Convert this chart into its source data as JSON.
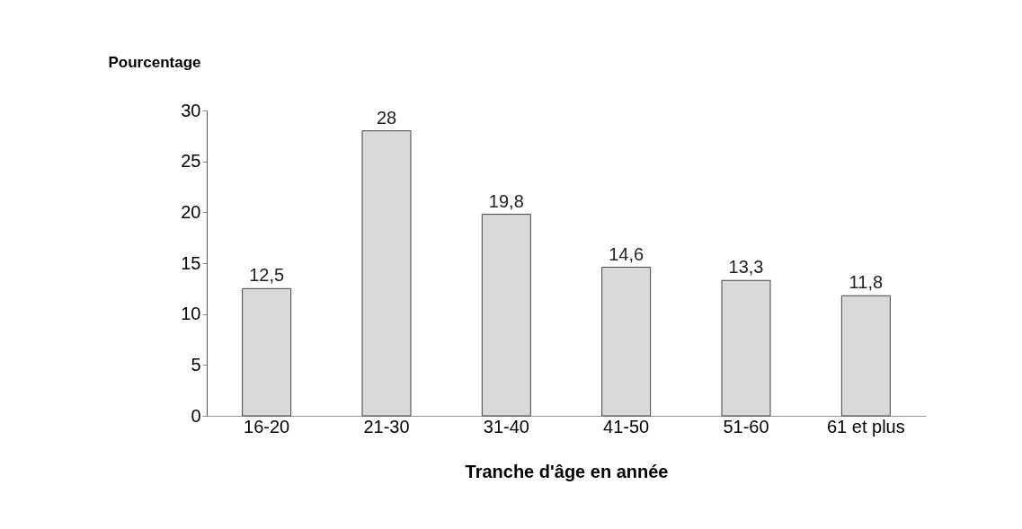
{
  "chart_data": {
    "type": "bar",
    "ylabel": "Pourcentage",
    "xlabel": "Tranche d'âge en année",
    "categories": [
      "16-20",
      "21-30",
      "31-40",
      "41-50",
      "51-60",
      "61 et plus"
    ],
    "values": [
      12.5,
      28,
      19.8,
      14.6,
      13.3,
      11.8
    ],
    "value_labels": [
      "12,5",
      "28",
      "19,8",
      "14,6",
      "13,3",
      "11,8"
    ],
    "color": "#d9d9d9",
    "ylim": [
      0,
      30
    ],
    "yticks": [
      0,
      5,
      10,
      15,
      20,
      25,
      30
    ],
    "grid": false
  }
}
